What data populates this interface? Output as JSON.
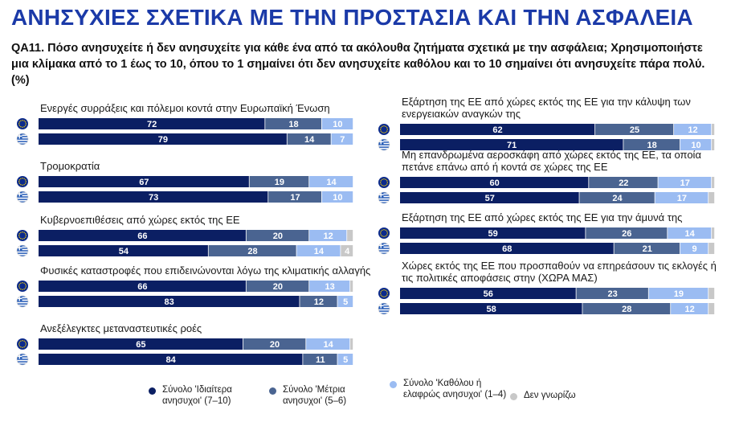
{
  "title": "ΑΝΗΣΥΧΙΕΣ ΣΧΕΤΙΚΑ ΜΕ ΤΗΝ ΠΡΟΣΤΑΣΙΑ ΚΑΙ ΤΗΝ ΑΣΦΑΛΕΙΑ",
  "question": "QA11. Πόσο ανησυχείτε ή δεν ανησυχείτε για κάθε ένα από τα ακόλουθα ζητήματα σχετικά με την ασφάλεια; Χρησιμοποιήστε μια κλίμακα από το 1 έως το 10, όπου το 1 σημαίνει ότι δεν ανησυχείτε καθόλου και το 10 σημαίνει ότι ανησυχείτε πάρα πολύ. (%)",
  "colors": {
    "very": "#0b1f63",
    "moderate": "#4a6491",
    "little": "#9bbcf2",
    "dk": "#c8c8c8",
    "title": "#1b3aa8"
  },
  "legend": [
    {
      "label": "Σύνολο 'Ιδιαίτερα ανησυχοι' (7–10)",
      "key": "very"
    },
    {
      "label": "Σύνολο 'Μέτρια ανησυχοι' (5–6)",
      "key": "moderate"
    },
    {
      "label": "Σύνολο 'Καθόλου ή ελαφρώς ανησυχοι' (1–4)",
      "key": "little"
    },
    {
      "label": "Δεν γνωρίζω",
      "key": "dk"
    }
  ],
  "chart_data": {
    "type": "bar",
    "orientation": "horizontal-stacked",
    "series_names": [
      "Σύνολο 'Ιδιαίτερα ανησυχοι' (7–10)",
      "Σύνολο 'Μέτρια ανησυχοι' (5–6)",
      "Σύνολο 'Καθόλου ή ελαφρώς ανησυχοι' (1–4)",
      "Δεν γνωρίζω"
    ],
    "row_flags": [
      "EU",
      "Greece"
    ],
    "xlim": [
      0,
      100
    ],
    "groups": [
      {
        "label": "Ενεργές συρράξεις και πόλεμοι κοντά στην Ευρωπαϊκή Ένωση",
        "column": "left",
        "rows": [
          {
            "flag": "EU",
            "values": [
              72,
              18,
              10,
              0
            ]
          },
          {
            "flag": "Greece",
            "values": [
              79,
              14,
              7,
              0
            ]
          }
        ]
      },
      {
        "label": "Τρομοκρατία",
        "column": "left",
        "rows": [
          {
            "flag": "EU",
            "values": [
              67,
              19,
              14,
              0
            ]
          },
          {
            "flag": "Greece",
            "values": [
              73,
              17,
              10,
              0
            ]
          }
        ]
      },
      {
        "label": "Κυβερνοεπιθέσεις από χώρες εκτός της ΕΕ",
        "column": "left",
        "rows": [
          {
            "flag": "EU",
            "values": [
              66,
              20,
              12,
              2
            ]
          },
          {
            "flag": "Greece",
            "values": [
              54,
              28,
              14,
              4
            ]
          }
        ]
      },
      {
        "label": "Φυσικές καταστροφές που επιδεινώνονται λόγω της κλιματικής αλλαγής",
        "column": "left",
        "rows": [
          {
            "flag": "EU",
            "values": [
              66,
              20,
              13,
              1
            ]
          },
          {
            "flag": "Greece",
            "values": [
              83,
              12,
              5,
              0
            ]
          }
        ]
      },
      {
        "label": "Ανεξέλεγκτες μεταναστευτικές ροές",
        "column": "left",
        "rows": [
          {
            "flag": "EU",
            "values": [
              65,
              20,
              14,
              1
            ]
          },
          {
            "flag": "Greece",
            "values": [
              84,
              11,
              5,
              0
            ]
          }
        ]
      },
      {
        "label": "Εξάρτηση της ΕΕ από χώρες εκτός της ΕΕ για την κάλυψη των ενεργειακών αναγκών της",
        "column": "right",
        "rows": [
          {
            "flag": "EU",
            "values": [
              62,
              25,
              12,
              1
            ]
          },
          {
            "flag": "Greece",
            "values": [
              71,
              18,
              10,
              1
            ]
          }
        ]
      },
      {
        "label": "Μη επανδρωμένα αεροσκάφη από χώρες εκτός της ΕΕ, τα οποία πετάνε επάνω από ή κοντά σε χώρες της ΕΕ",
        "column": "right",
        "rows": [
          {
            "flag": "EU",
            "values": [
              60,
              22,
              17,
              1
            ]
          },
          {
            "flag": "Greece",
            "values": [
              57,
              24,
              17,
              2
            ]
          }
        ]
      },
      {
        "label": "Εξάρτηση της ΕΕ από χώρες εκτός της ΕΕ για την άμυνά της",
        "column": "right",
        "rows": [
          {
            "flag": "EU",
            "values": [
              59,
              26,
              14,
              1
            ]
          },
          {
            "flag": "Greece",
            "values": [
              68,
              21,
              9,
              2
            ]
          }
        ]
      },
      {
        "label": "Χώρες εκτός της ΕΕ που προσπαθούν να επηρεάσουν τις εκλογές ή τις πολιτικές αποφάσεις στην (ΧΩΡΑ ΜΑΣ)",
        "column": "right",
        "rows": [
          {
            "flag": "EU",
            "values": [
              56,
              23,
              19,
              2
            ]
          },
          {
            "flag": "Greece",
            "values": [
              58,
              28,
              12,
              2
            ]
          }
        ]
      }
    ]
  }
}
